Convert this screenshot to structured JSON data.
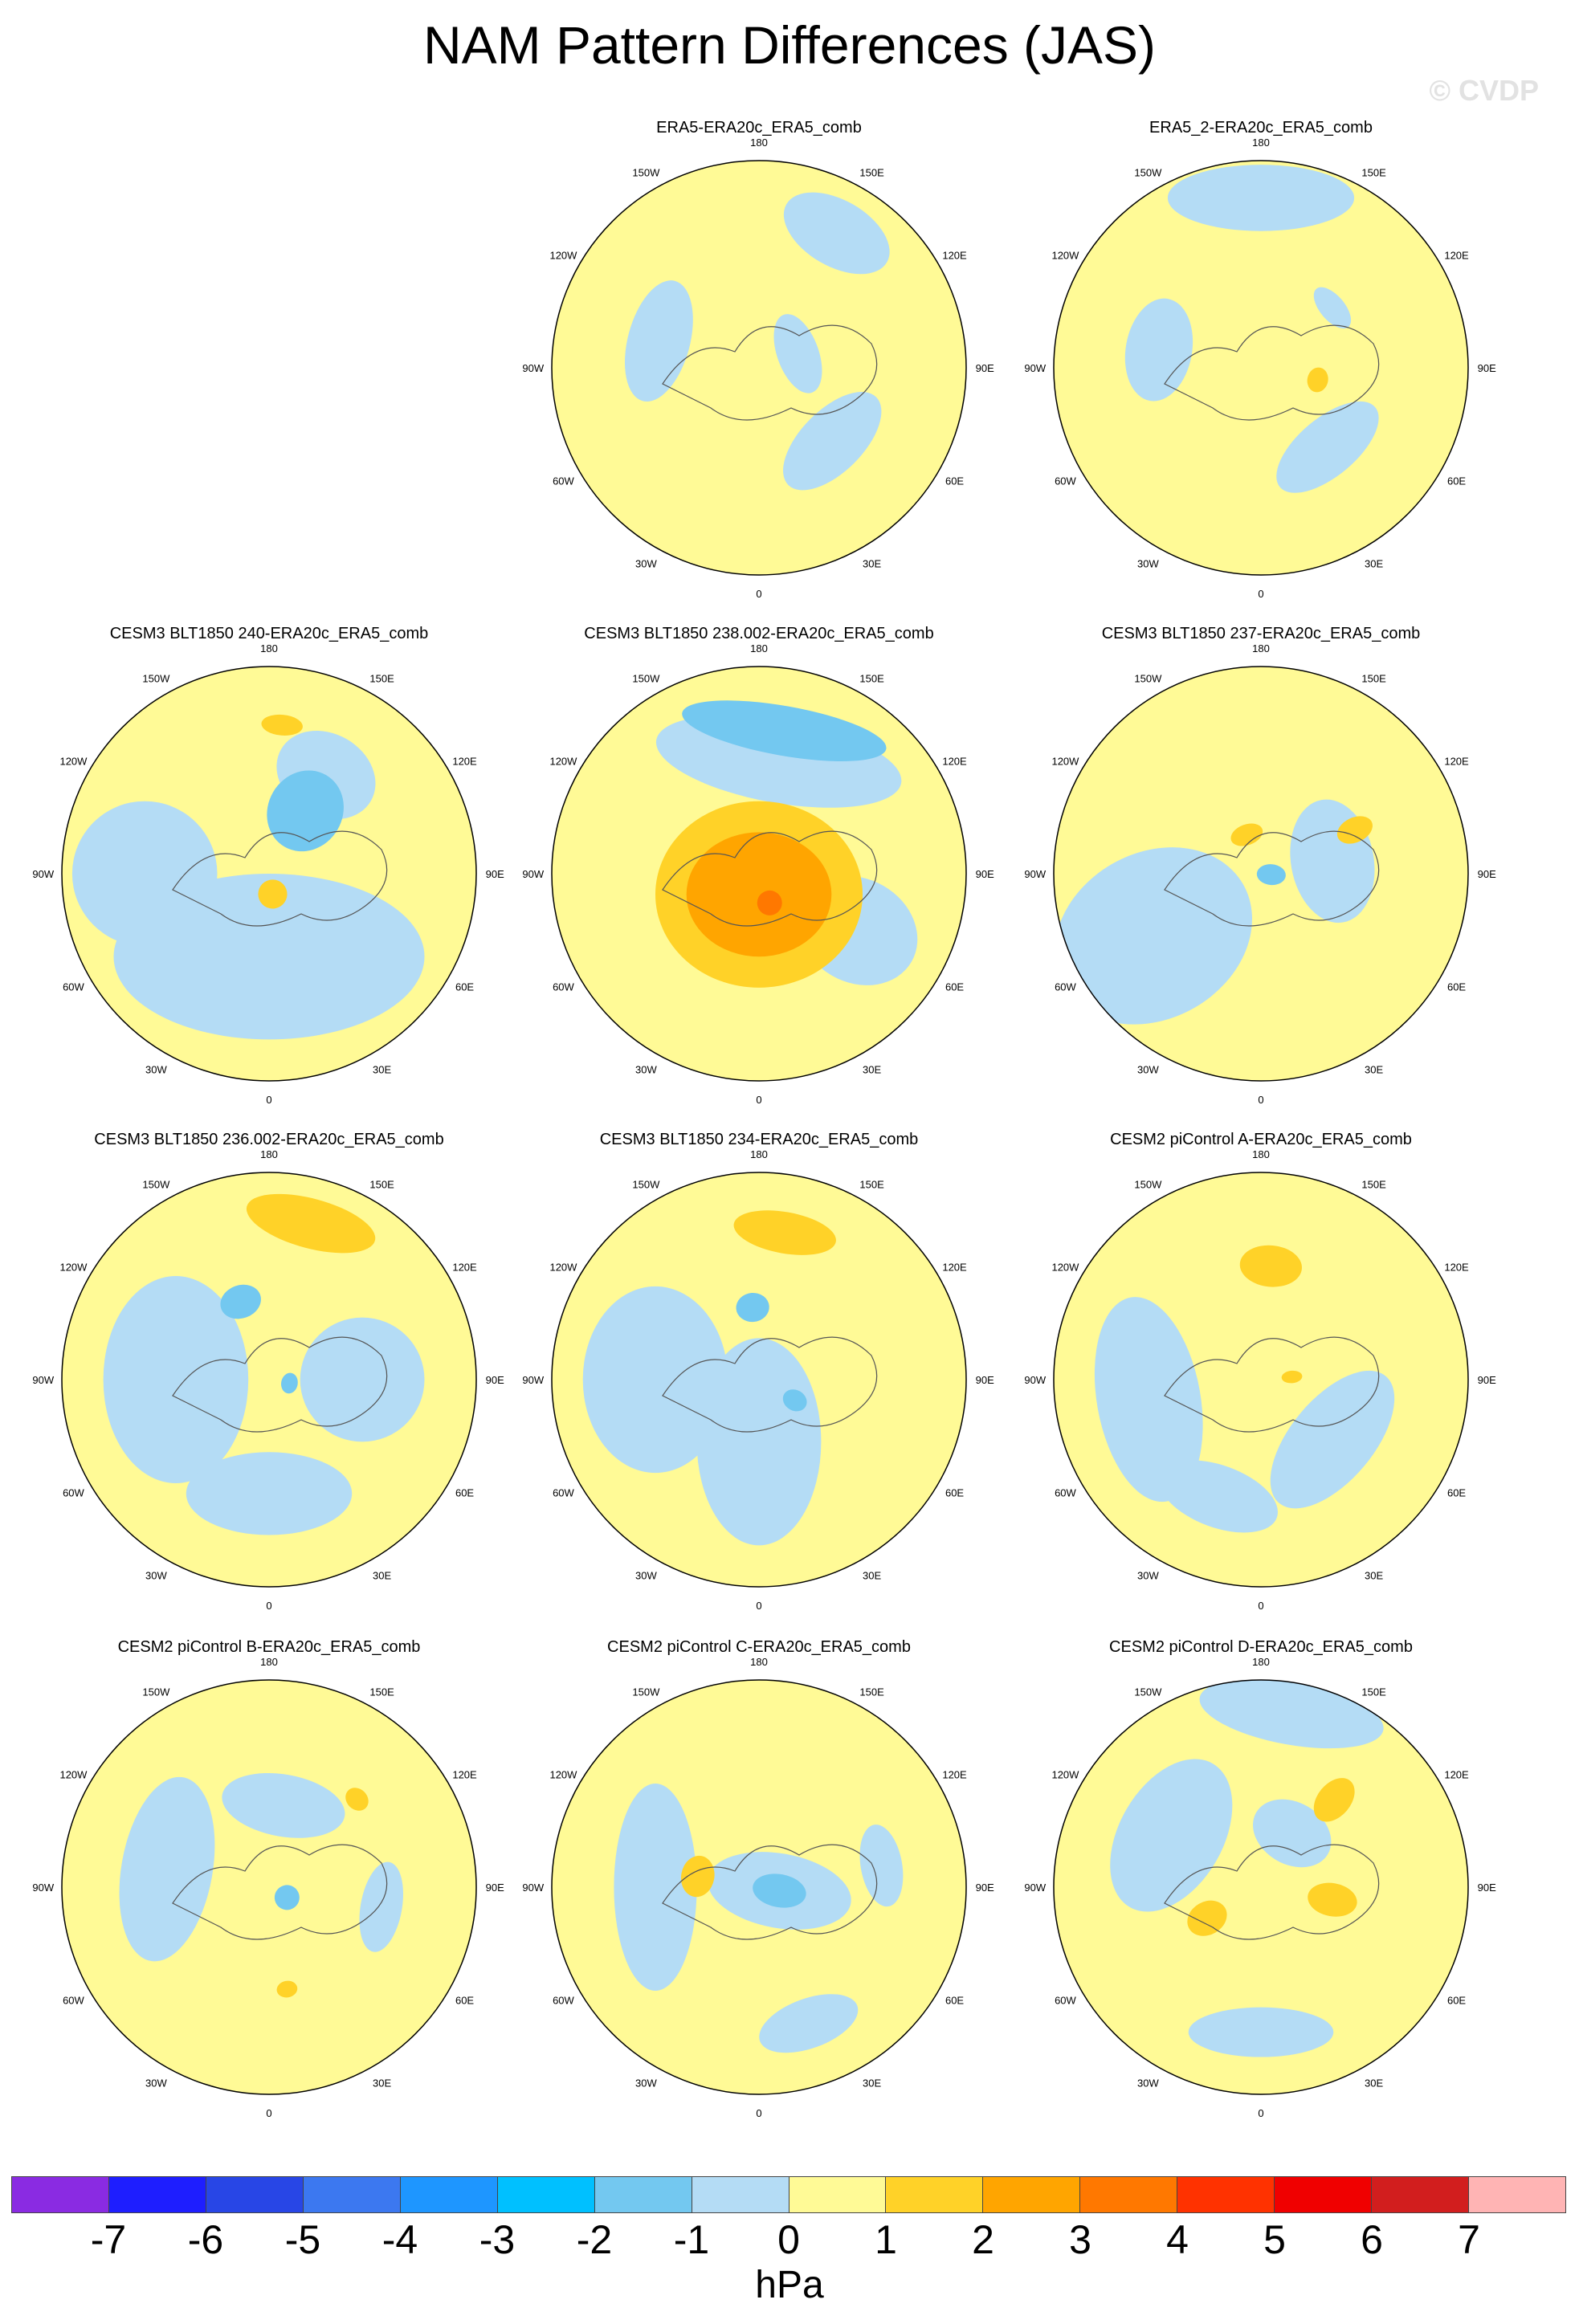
{
  "title": "NAM Pattern Differences (JAS)",
  "watermark": "© CVDP",
  "unit": "hPa",
  "lon_labels": [
    "180",
    "150E",
    "120E",
    "90E",
    "60E",
    "30E",
    "0",
    "30W",
    "60W",
    "90W",
    "120W",
    "150W"
  ],
  "colorbar": {
    "colors": [
      "#8a2be2",
      "#1e1eff",
      "#2846e6",
      "#3c78f0",
      "#1e96ff",
      "#00c0ff",
      "#73c8f0",
      "#b4dcf5",
      "#fffa96",
      "#ffd228",
      "#ffa500",
      "#ff7800",
      "#ff3200",
      "#f00000",
      "#d21e1e",
      "#ffb4b4"
    ],
    "labels": [
      "-7",
      "-6",
      "-5",
      "-4",
      "-3",
      "-2",
      "-1",
      "0",
      "1",
      "2",
      "3",
      "4",
      "5",
      "6",
      "7"
    ]
  },
  "panels": [
    {
      "title": "ERA5-ERA20c_ERA5_comb",
      "blobs": [
        {
          "c": 7,
          "a": 150,
          "r": 0.75,
          "rx": 0.28,
          "ry": 0.16
        },
        {
          "c": 7,
          "a": 45,
          "r": 0.5,
          "rx": 0.3,
          "ry": 0.15
        },
        {
          "c": 7,
          "a": 110,
          "r": 0.2,
          "rx": 0.2,
          "ry": 0.1
        },
        {
          "c": 7,
          "a": 255,
          "r": 0.5,
          "rx": 0.3,
          "ry": 0.15
        }
      ]
    },
    {
      "title": "ERA5_2-ERA20c_ERA5_comb",
      "blobs": [
        {
          "c": 7,
          "a": 180,
          "r": 0.82,
          "rx": 0.45,
          "ry": 0.16
        },
        {
          "c": 7,
          "a": 40,
          "r": 0.5,
          "rx": 0.3,
          "ry": 0.14
        },
        {
          "c": 7,
          "a": 260,
          "r": 0.5,
          "rx": 0.25,
          "ry": 0.16
        },
        {
          "c": 7,
          "a": 130,
          "r": 0.45,
          "rx": 0.12,
          "ry": 0.06
        },
        {
          "c": 9,
          "a": 78,
          "r": 0.28,
          "rx": 0.06,
          "ry": 0.05
        }
      ]
    },
    {
      "title": "CESM3 BLT1850 240-ERA20c_ERA5_comb",
      "blobs": [
        {
          "c": 7,
          "a": 0,
          "r": 0.4,
          "rx": 0.75,
          "ry": 0.4
        },
        {
          "c": 7,
          "a": 270,
          "r": 0.6,
          "rx": 0.35,
          "ry": 0.35
        },
        {
          "c": 7,
          "a": 150,
          "r": 0.55,
          "rx": 0.25,
          "ry": 0.2
        },
        {
          "c": 6,
          "a": 150,
          "r": 0.35,
          "rx": 0.18,
          "ry": 0.2
        },
        {
          "c": 9,
          "a": 175,
          "r": 0.72,
          "rx": 0.1,
          "ry": 0.05
        },
        {
          "c": 9,
          "a": 10,
          "r": 0.1,
          "rx": 0.07,
          "ry": 0.07
        }
      ]
    },
    {
      "title": "CESM3 BLT1850 238.002-ERA20c_ERA5_comb",
      "blobs": [
        {
          "c": 7,
          "a": 170,
          "r": 0.55,
          "rx": 0.6,
          "ry": 0.2
        },
        {
          "c": 6,
          "a": 170,
          "r": 0.7,
          "rx": 0.5,
          "ry": 0.12
        },
        {
          "c": 7,
          "a": 60,
          "r": 0.55,
          "rx": 0.25,
          "ry": 0.3
        },
        {
          "c": 9,
          "a": 0,
          "r": 0.1,
          "rx": 0.5,
          "ry": 0.45
        },
        {
          "c": 10,
          "a": 0,
          "r": 0.1,
          "rx": 0.35,
          "ry": 0.3
        },
        {
          "c": 11,
          "a": 20,
          "r": 0.15,
          "rx": 0.06,
          "ry": 0.06
        }
      ]
    },
    {
      "title": "CESM3 BLT1850 237-ERA20c_ERA5_comb",
      "blobs": [
        {
          "c": 7,
          "a": 300,
          "r": 0.6,
          "rx": 0.4,
          "ry": 0.5
        },
        {
          "c": 7,
          "a": 100,
          "r": 0.35,
          "rx": 0.3,
          "ry": 0.2
        },
        {
          "c": 9,
          "a": 115,
          "r": 0.5,
          "rx": 0.06,
          "ry": 0.09
        },
        {
          "c": 6,
          "a": 85,
          "r": 0.05,
          "rx": 0.05,
          "ry": 0.07
        },
        {
          "c": 9,
          "a": 200,
          "r": 0.2,
          "rx": 0.08,
          "ry": 0.05
        }
      ]
    },
    {
      "title": "CESM3 BLT1850 236.002-ERA20c_ERA5_comb",
      "blobs": [
        {
          "c": 7,
          "a": 270,
          "r": 0.45,
          "rx": 0.5,
          "ry": 0.35
        },
        {
          "c": 7,
          "a": 0,
          "r": 0.55,
          "rx": 0.4,
          "ry": 0.2
        },
        {
          "c": 7,
          "a": 90,
          "r": 0.45,
          "rx": 0.3,
          "ry": 0.3
        },
        {
          "c": 9,
          "a": 165,
          "r": 0.78,
          "rx": 0.32,
          "ry": 0.12
        },
        {
          "c": 6,
          "a": 200,
          "r": 0.4,
          "rx": 0.1,
          "ry": 0.08
        },
        {
          "c": 6,
          "a": 80,
          "r": 0.1,
          "rx": 0.05,
          "ry": 0.04
        }
      ]
    },
    {
      "title": "CESM3 BLT1850 234-ERA20c_ERA5_comb",
      "blobs": [
        {
          "c": 7,
          "a": 270,
          "r": 0.5,
          "rx": 0.45,
          "ry": 0.35
        },
        {
          "c": 7,
          "a": 0,
          "r": 0.3,
          "rx": 0.3,
          "ry": 0.5
        },
        {
          "c": 9,
          "a": 170,
          "r": 0.72,
          "rx": 0.25,
          "ry": 0.1
        },
        {
          "c": 6,
          "a": 185,
          "r": 0.35,
          "rx": 0.08,
          "ry": 0.07
        },
        {
          "c": 6,
          "a": 60,
          "r": 0.2,
          "rx": 0.05,
          "ry": 0.06
        }
      ]
    },
    {
      "title": "CESM2 piControl A-ERA20c_ERA5_comb",
      "blobs": [
        {
          "c": 7,
          "a": 280,
          "r": 0.55,
          "rx": 0.5,
          "ry": 0.25
        },
        {
          "c": 7,
          "a": 50,
          "r": 0.45,
          "rx": 0.4,
          "ry": 0.2
        },
        {
          "c": 7,
          "a": 340,
          "r": 0.6,
          "rx": 0.3,
          "ry": 0.15
        },
        {
          "c": 9,
          "a": 175,
          "r": 0.55,
          "rx": 0.15,
          "ry": 0.1
        },
        {
          "c": 9,
          "a": 95,
          "r": 0.15,
          "rx": 0.03,
          "ry": 0.05
        }
      ]
    },
    {
      "title": "CESM2 piControl B-ERA20c_ERA5_comb",
      "blobs": [
        {
          "c": 7,
          "a": 260,
          "r": 0.5,
          "rx": 0.45,
          "ry": 0.22
        },
        {
          "c": 7,
          "a": 170,
          "r": 0.4,
          "rx": 0.3,
          "ry": 0.15
        },
        {
          "c": 7,
          "a": 80,
          "r": 0.55,
          "rx": 0.22,
          "ry": 0.1
        },
        {
          "c": 6,
          "a": 60,
          "r": 0.1,
          "rx": 0.06,
          "ry": 0.06
        },
        {
          "c": 9,
          "a": 135,
          "r": 0.6,
          "rx": 0.06,
          "ry": 0.05
        },
        {
          "c": 9,
          "a": 10,
          "r": 0.5,
          "rx": 0.05,
          "ry": 0.04
        }
      ]
    },
    {
      "title": "CESM2 piControl C-ERA20c_ERA5_comb",
      "blobs": [
        {
          "c": 7,
          "a": 270,
          "r": 0.5,
          "rx": 0.5,
          "ry": 0.2
        },
        {
          "c": 7,
          "a": 80,
          "r": 0.1,
          "rx": 0.18,
          "ry": 0.35
        },
        {
          "c": 7,
          "a": 20,
          "r": 0.7,
          "rx": 0.25,
          "ry": 0.12
        },
        {
          "c": 7,
          "a": 100,
          "r": 0.6,
          "rx": 0.2,
          "ry": 0.1
        },
        {
          "c": 6,
          "a": 80,
          "r": 0.1,
          "rx": 0.08,
          "ry": 0.13
        },
        {
          "c": 9,
          "a": 260,
          "r": 0.3,
          "rx": 0.1,
          "ry": 0.08
        }
      ]
    },
    {
      "title": "CESM2 piControl D-ERA20c_ERA5_comb",
      "blobs": [
        {
          "c": 7,
          "a": 170,
          "r": 0.85,
          "rx": 0.45,
          "ry": 0.15
        },
        {
          "c": 7,
          "a": 240,
          "r": 0.5,
          "rx": 0.4,
          "ry": 0.25
        },
        {
          "c": 7,
          "a": 0,
          "r": 0.7,
          "rx": 0.35,
          "ry": 0.12
        },
        {
          "c": 7,
          "a": 150,
          "r": 0.3,
          "rx": 0.2,
          "ry": 0.15
        },
        {
          "c": 9,
          "a": 140,
          "r": 0.55,
          "rx": 0.08,
          "ry": 0.12
        },
        {
          "c": 9,
          "a": 80,
          "r": 0.35,
          "rx": 0.08,
          "ry": 0.12
        },
        {
          "c": 9,
          "a": 300,
          "r": 0.3,
          "rx": 0.08,
          "ry": 0.1
        }
      ]
    }
  ]
}
